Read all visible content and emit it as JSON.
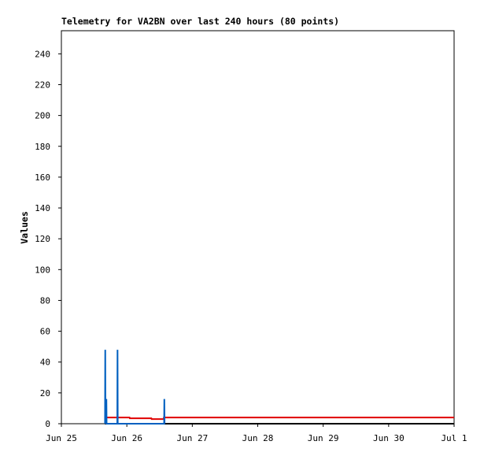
{
  "chart_data": {
    "type": "line",
    "title": "Telemetry for VA2BN over last 240 hours (80 points)",
    "y_label": "Values",
    "xlim": [
      "Jun 25",
      "Jul 1"
    ],
    "xticks": [
      "Jun 25",
      "Jun 26",
      "Jun 27",
      "Jun 28",
      "Jun 29",
      "Jun 30",
      "Jul 1"
    ],
    "ylim": [
      0,
      255
    ],
    "yticks": [
      0,
      20,
      40,
      60,
      80,
      100,
      120,
      140,
      160,
      180,
      200,
      220,
      240
    ],
    "series": [
      {
        "color": "#000000",
        "x": [
          "Jun 25 16:00",
          "Jul 1"
        ],
        "values": [
          0,
          0
        ]
      },
      {
        "color": "#e00000",
        "x": [
          "Jun 25 16:00",
          "Jun 26 01:00",
          "Jun 26 01:05",
          "Jun 26 09:00",
          "Jun 26 09:05",
          "Jun 26 13:30",
          "Jun 26 13:35",
          "Jul 1"
        ],
        "values": [
          4,
          4,
          3.5,
          3.5,
          3,
          3,
          4,
          4
        ]
      },
      {
        "color": "#0060c0",
        "x": [
          "Jun 25 16:00",
          "Jun 25 16:05",
          "Jun 25 16:10",
          "Jun 25 16:30",
          "Jun 25 16:35",
          "Jun 25 20:30",
          "Jun 25 20:35",
          "Jun 25 20:40",
          "Jun 26 13:40",
          "Jun 26 13:45",
          "Jun 26 13:50"
        ],
        "values": [
          0,
          48,
          0,
          16,
          0,
          0,
          48,
          0,
          0,
          16,
          0
        ]
      }
    ]
  }
}
